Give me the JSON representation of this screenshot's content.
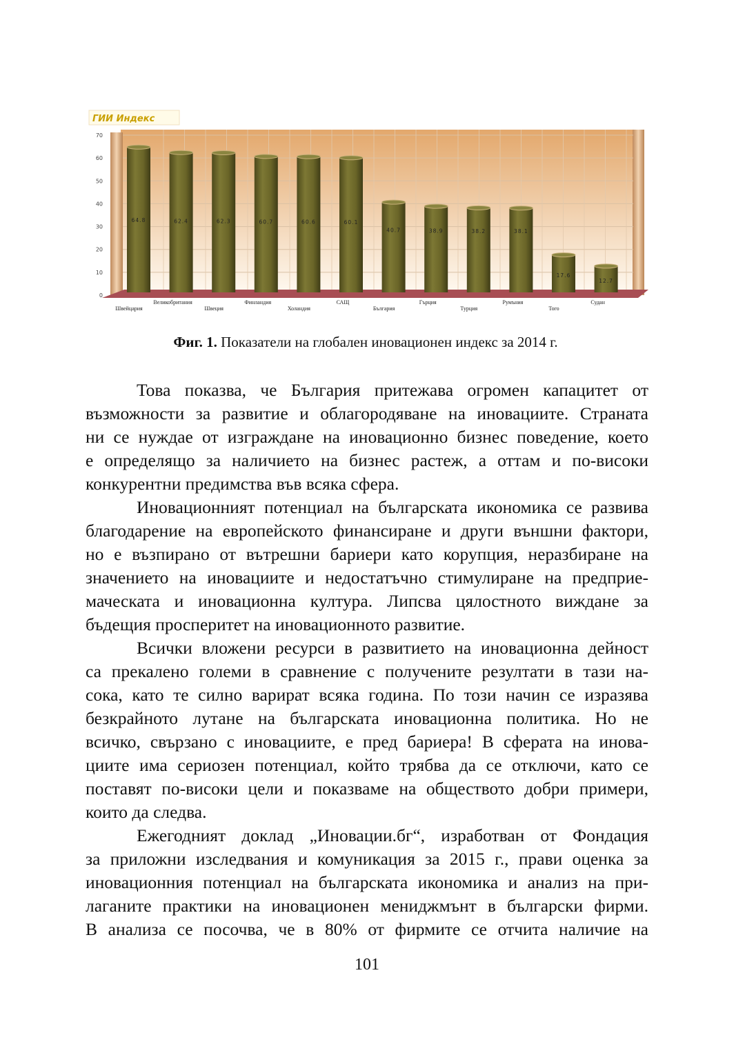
{
  "chart_data": {
    "type": "bar",
    "title": "ГИИ Индекс",
    "categories": [
      "Швейцария",
      "Великобритания",
      "Швеция",
      "Финландия",
      "Холандия",
      "САЩ",
      "България",
      "Гърция",
      "Турция",
      "Румъния",
      "Того",
      "Судан"
    ],
    "values": [
      64.8,
      62.4,
      62.3,
      60.7,
      60.6,
      60.1,
      40.7,
      38.9,
      38.2,
      38.1,
      17.6,
      12.7
    ],
    "data_labels": [
      "64.8",
      "62.4",
      "62.3",
      "60.7",
      "60.6",
      "60.1",
      "40.7",
      "38.9",
      "38.2",
      "38.1",
      "17.6",
      "12.7"
    ],
    "ylim": [
      0,
      70
    ],
    "yticks": [
      "0",
      "10",
      "20",
      "30",
      "40",
      "50",
      "60",
      "70"
    ],
    "grid": true,
    "bar_color": "#6f6a2c",
    "title_color": "#c9a000",
    "style": "3d-cylinder"
  },
  "caption": {
    "label": "Фиг. 1.",
    "text": " Показатели на глобален иновационен индекс за 2014 г."
  },
  "paragraphs": [
    [
      "Това показва, че България притежава огромен капацитет от",
      "възможности за развитие и облагородяване на иновациите. Страната",
      "ни се нуждае от изграждане на иновационно бизнес поведение, което",
      "е определящо за наличието на бизнес растеж, а оттам и по-високи",
      "конкурентни предимства във всяка сфера."
    ],
    [
      "Иновационният потенциал на българската икономика се развива",
      "благодарение на европейското финансиране и други външни фактори,",
      "но е възпирано от вътрешни  бариери като корупция, неразбиране на",
      "значението на иновациите и недостатъчно стимулиране на предприе-",
      "маческата и иновационна култура. Липсва цялостното виждане за",
      "бъдещия просперитет на иновационното развитие."
    ],
    [
      " Всички вложени ресурси в развитието на иновационна дейност",
      "са прекалено големи в сравнение с получените резултати в тази на-",
      "сока, като те силно варират всяка година. По този начин се изразява",
      "безкрайното лутане на българската иновационна политика. Но не",
      "всичко, свързано с иновациите, е пред бариера! В сферата на инова-",
      "циите има сериозен потенциал, който трябва да се отключи, като се",
      "поставят по-високи цели и показваме на обществото добри примери,",
      "които да следва."
    ],
    [
      "Ежегодният доклад „Иновации.бг“, изработван от Фондация",
      "за приложни изследвания и комуникация за 2015 г., прави оценка за",
      "иновационния потенциал на българската икономика и анализ на при-",
      "лаганите практики на иновационен мениджмънт в български фирми.",
      "В анализа се посочва, че в 80% от фирмите се отчита наличие на"
    ]
  ],
  "page_number": "101"
}
